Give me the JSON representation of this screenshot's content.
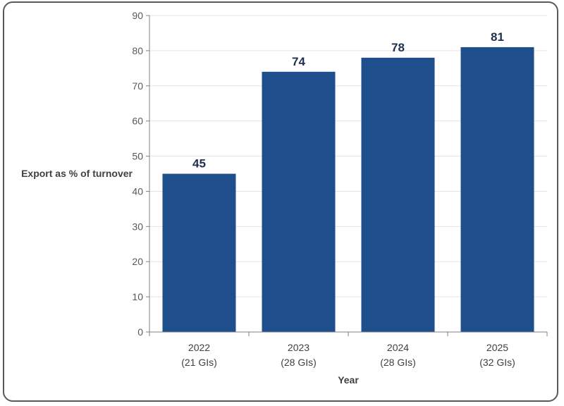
{
  "chart_data": {
    "type": "bar",
    "categories": [
      {
        "year": "2022",
        "note": "(21 GIs)"
      },
      {
        "year": "2023",
        "note": "(28 GIs)"
      },
      {
        "year": "2024",
        "note": "(28 GIs)"
      },
      {
        "year": "2025",
        "note": "(32 GIs)"
      }
    ],
    "values": [
      45,
      74,
      78,
      81
    ],
    "data_labels": [
      "45",
      "74",
      "78",
      "81"
    ],
    "title": "",
    "xlabel": "Year",
    "ylabel": "Export as % of turnover",
    "ylim": [
      0,
      90
    ],
    "yticks": [
      0,
      10,
      20,
      30,
      40,
      50,
      60,
      70,
      80,
      90
    ],
    "grid": true,
    "legend": "none",
    "bar_color": "#1f4e8c"
  }
}
